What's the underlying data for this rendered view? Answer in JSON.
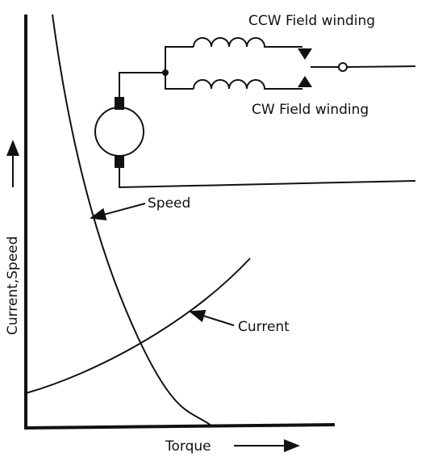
{
  "labels": {
    "ccw": "CCW Field winding",
    "cw": "CW Field winding",
    "speed": "Speed",
    "current": "Current",
    "y_axis": "Current,Speed",
    "x_axis": "Torque"
  }
}
